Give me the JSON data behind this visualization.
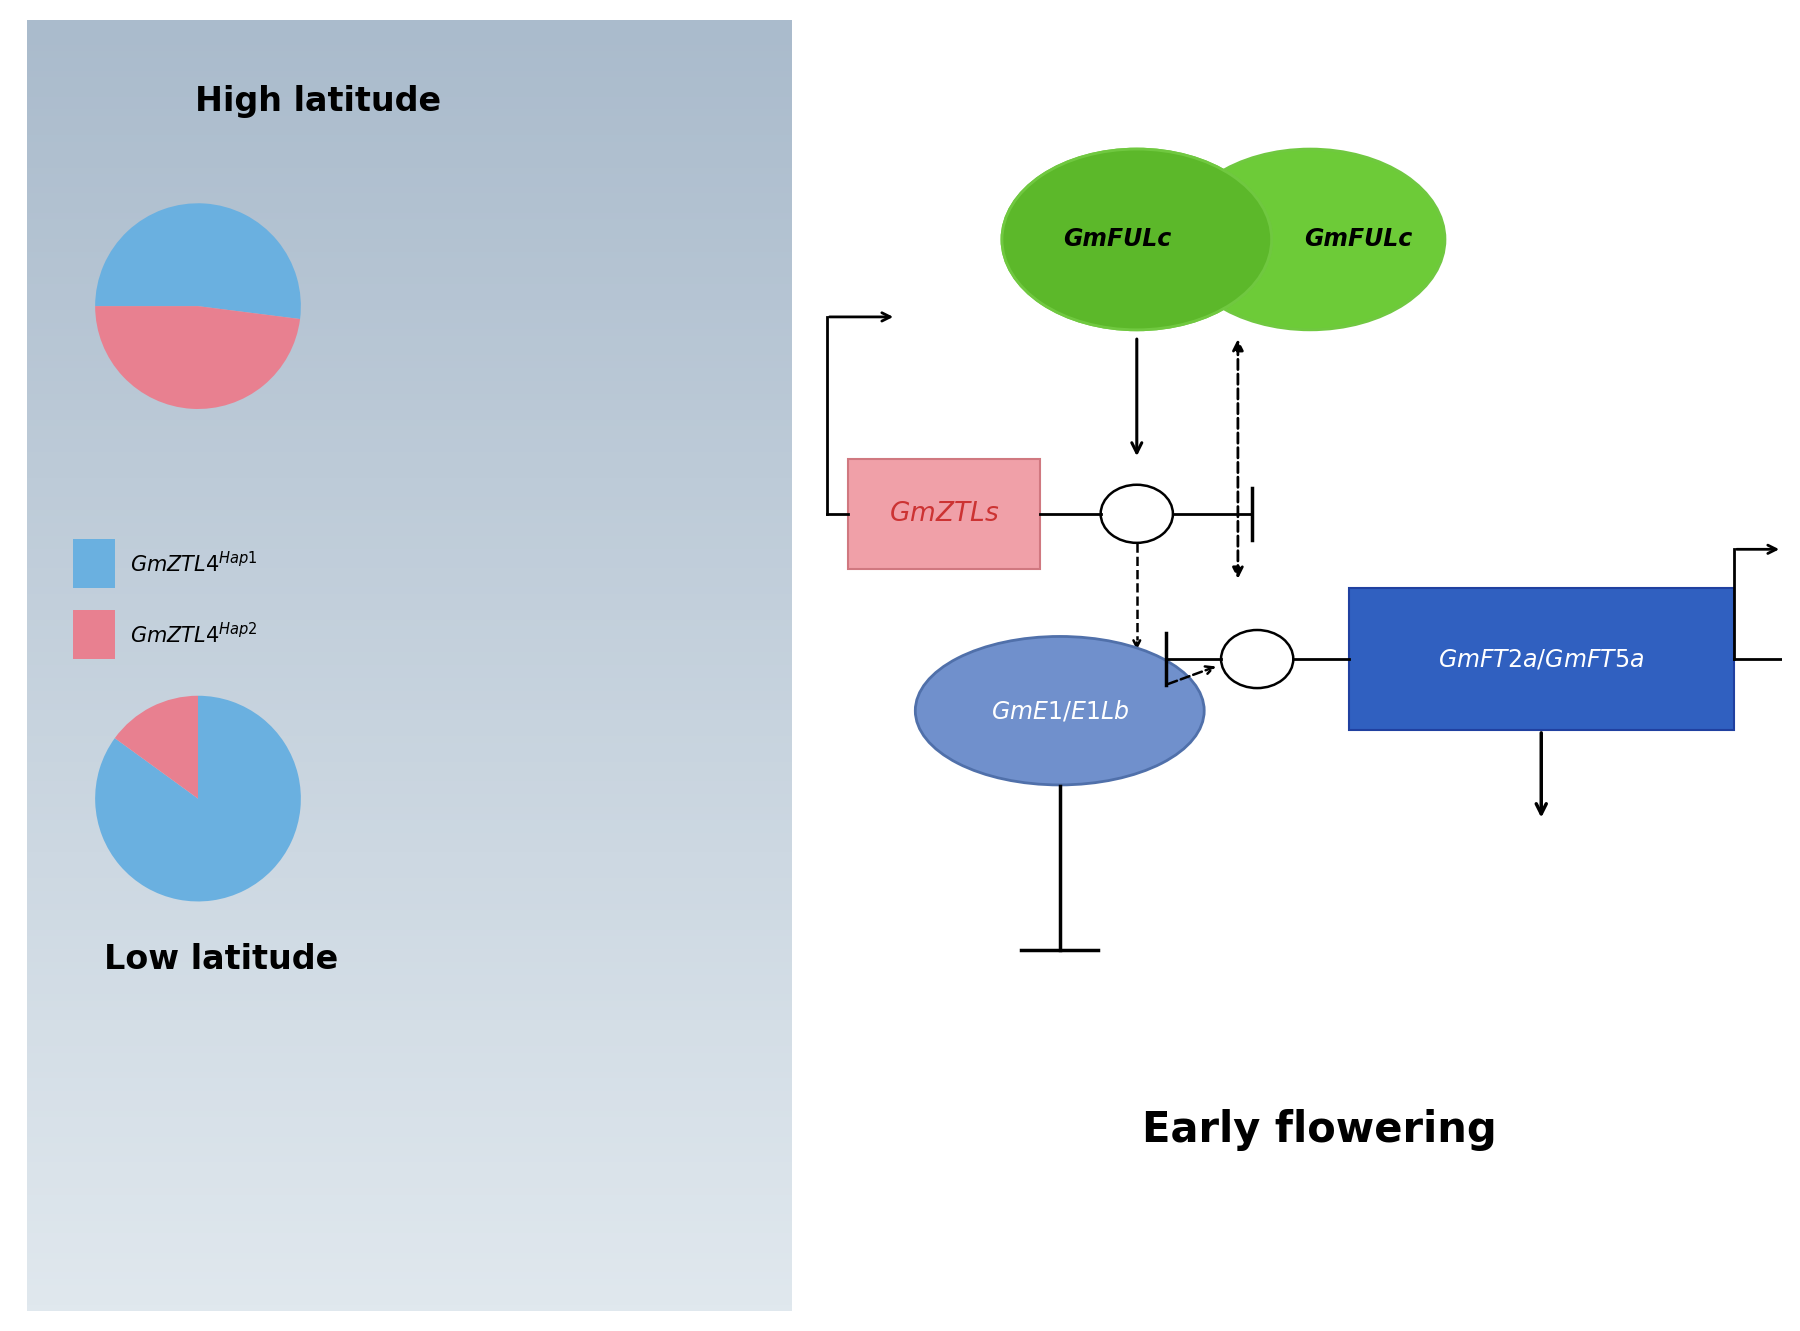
{
  "left_panel_title_high": "High latitude",
  "left_panel_title_low": "Low latitude",
  "legend_color1": "#6ab0e0",
  "legend_color2": "#e88090",
  "pie_high_blue": 0.52,
  "pie_high_red": 0.48,
  "pie_low_blue": 0.85,
  "pie_low_red": 0.15,
  "gmfulc_color": "#5cb82a",
  "gmfulc_outline": "#70c840",
  "gmztls_color": "#f0a0a8",
  "gmztls_border": "#d07880",
  "gmztls_text": "#cc3333",
  "gme1_color": "#7090cc",
  "gme1_border": "#5070aa",
  "gmft_color": "#3060c0",
  "gmft_border": "#2040a0",
  "early_flowering_text": "Early flowering",
  "bg_top": "#aabccc",
  "bg_bottom": "#dde8ee"
}
